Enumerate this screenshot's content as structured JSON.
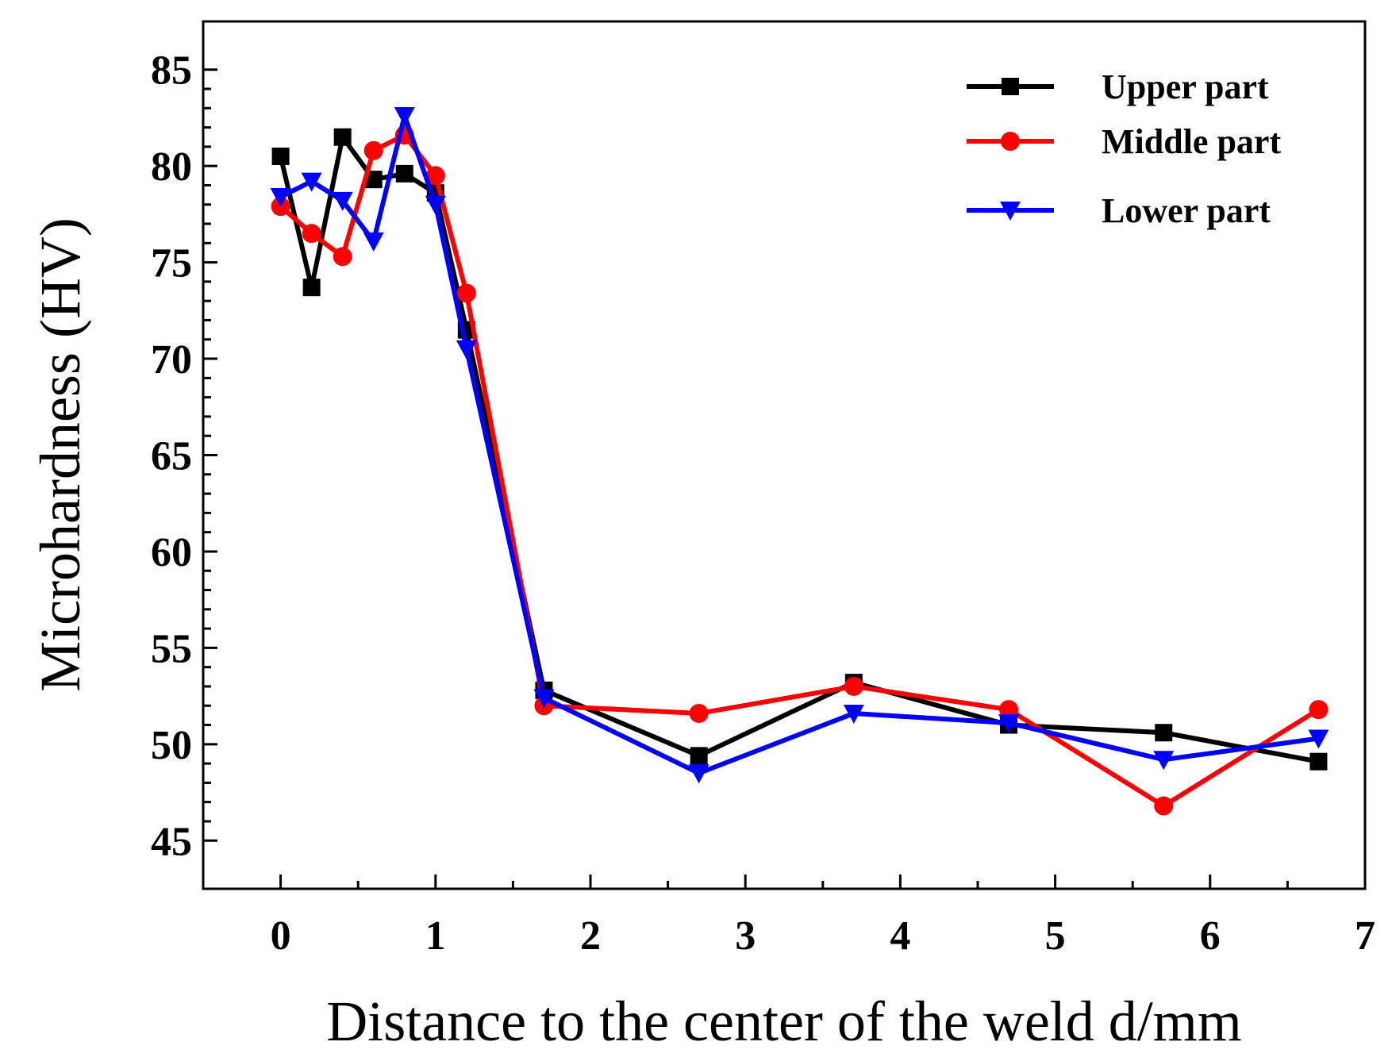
{
  "chart_data": {
    "type": "line",
    "title": "",
    "xlabel": "Distance to the center of the weld d/mm",
    "ylabel": "Microhardness (HV)",
    "xlim": [
      -0.5,
      7
    ],
    "ylim": [
      42.5,
      87.5
    ],
    "xticks": [
      0,
      1,
      2,
      3,
      4,
      5,
      6,
      7
    ],
    "yticks": [
      45,
      50,
      55,
      60,
      65,
      70,
      75,
      80,
      85
    ],
    "legend_position": "top-right",
    "grid": false,
    "series": [
      {
        "name": "Upper part",
        "color": "#000000",
        "marker": "square",
        "x": [
          0,
          0.2,
          0.4,
          0.6,
          0.8,
          1.0,
          1.2,
          1.7,
          2.7,
          3.7,
          4.7,
          5.7,
          6.7
        ],
        "y": [
          80.5,
          73.7,
          81.5,
          79.3,
          79.6,
          78.6,
          71.5,
          52.8,
          49.4,
          53.2,
          51.0,
          50.6,
          49.1
        ]
      },
      {
        "name": "Middle part",
        "color": "#ff0000",
        "marker": "circle",
        "x": [
          0,
          0.2,
          0.4,
          0.6,
          0.8,
          1.0,
          1.2,
          1.7,
          2.7,
          3.7,
          4.7,
          5.7,
          6.7
        ],
        "y": [
          77.9,
          76.5,
          75.3,
          80.8,
          81.6,
          79.5,
          73.4,
          52.0,
          51.6,
          53.0,
          51.8,
          46.8,
          51.8
        ]
      },
      {
        "name": "Lower part",
        "color": "#0000ff",
        "marker": "triangle-down",
        "x": [
          0,
          0.2,
          0.4,
          0.6,
          0.8,
          1.0,
          1.2,
          1.7,
          2.7,
          3.7,
          4.7,
          5.7,
          6.7
        ],
        "y": [
          78.4,
          79.2,
          78.2,
          76.1,
          82.6,
          78.0,
          70.5,
          52.4,
          48.5,
          51.6,
          51.1,
          49.2,
          50.3
        ]
      }
    ]
  }
}
